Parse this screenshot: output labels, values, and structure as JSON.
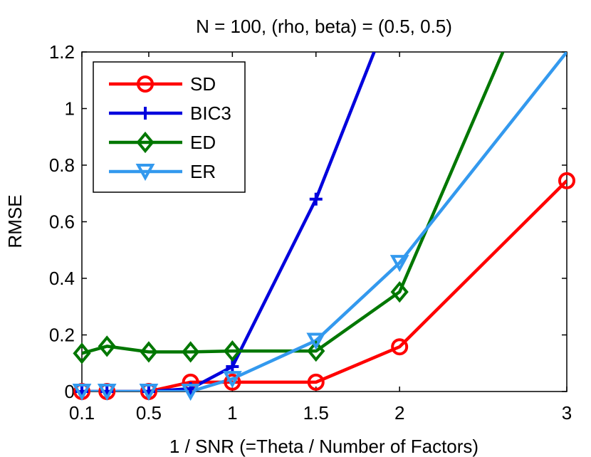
{
  "chart_data": {
    "type": "line",
    "title": "N = 100, (rho, beta) = (0.5, 0.5)",
    "xlabel": "1 / SNR (=Theta / Number of Factors)",
    "ylabel": "RMSE",
    "xlim": [
      0.1,
      3
    ],
    "ylim": [
      0,
      1.2
    ],
    "xticks": [
      0.1,
      0.5,
      1,
      1.5,
      2,
      3
    ],
    "xtick_labels": [
      "0.1",
      "0.5",
      "1",
      "1.5",
      "2",
      "3"
    ],
    "yticks": [
      0,
      0.2,
      0.4,
      0.6,
      0.8,
      1,
      1.2
    ],
    "ytick_labels": [
      "0",
      "0.2",
      "0.4",
      "0.6",
      "0.8",
      "1",
      "1.2"
    ],
    "legend_position": "top-left",
    "series": [
      {
        "name": "SD",
        "color": "#ff0000",
        "marker": "circle",
        "x": [
          0.1,
          0.25,
          0.5,
          0.75,
          1,
          1.5,
          2,
          3
        ],
        "y": [
          0,
          0,
          0,
          0.033,
          0.033,
          0.033,
          0.158,
          0.745
        ]
      },
      {
        "name": "BIC3",
        "color": "#0000dd",
        "marker": "plus",
        "x": [
          0.1,
          0.25,
          0.5,
          0.75,
          1,
          1.5,
          1.848
        ],
        "y": [
          0,
          0,
          0,
          0.01,
          0.088,
          0.68,
          1.2
        ]
      },
      {
        "name": "ED",
        "color": "#007700",
        "marker": "diamond",
        "x": [
          0.1,
          0.25,
          0.5,
          0.75,
          1,
          1.5,
          2,
          2.618
        ],
        "y": [
          0.135,
          0.16,
          0.14,
          0.14,
          0.143,
          0.143,
          0.352,
          1.2
        ]
      },
      {
        "name": "ER",
        "color": "#3399ee",
        "marker": "triangle-down",
        "x": [
          0.1,
          0.25,
          0.5,
          0.75,
          1,
          1.5,
          2,
          3
        ],
        "y": [
          0,
          0,
          0,
          0,
          0.045,
          0.18,
          0.455,
          1.2
        ]
      }
    ],
    "marked_points": {
      "SD": [
        0,
        1,
        2,
        3,
        4,
        5,
        6,
        7
      ],
      "BIC3": [
        0,
        1,
        2,
        3,
        4,
        5
      ],
      "ED": [
        0,
        1,
        2,
        3,
        4,
        5,
        6
      ],
      "ER": [
        0,
        1,
        2,
        3,
        4,
        5,
        6
      ]
    }
  }
}
